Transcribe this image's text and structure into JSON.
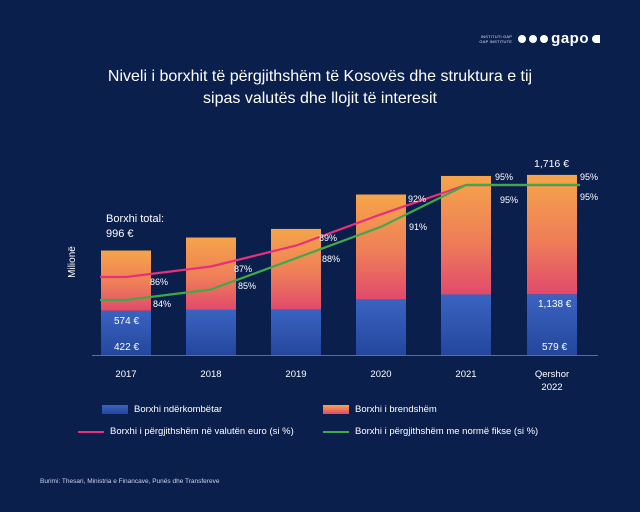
{
  "brand": {
    "small_line1": "INSTITUTI GAP",
    "small_line2": "GAP INSTITUTE",
    "word": "gapo"
  },
  "title_line1": "Niveli i borxhit të përgjithshëm të Kosovës dhe struktura e tij",
  "title_line2": "sipas valutës dhe llojit të interesit",
  "source": "Burimi: Thesari, Ministria e Financave, Punës dhe Transfereve",
  "colors": {
    "external": "#2f58b4",
    "domestic_top": "#f3a04a",
    "domestic_bottom": "#e4526a",
    "euro_line": "#e8307a",
    "fixed_line": "#3fa94a",
    "background": "#0b1f4d"
  },
  "chart_data": {
    "type": "bar",
    "stacked": true,
    "categories": [
      "2017",
      "2018",
      "2019",
      "2020",
      "2021",
      [
        "Qershor",
        "2022"
      ]
    ],
    "ylabel": "Milionë",
    "series": [
      {
        "name": "Borxhi ndërkombëtar",
        "values": [
          422,
          430,
          432,
          530,
          577,
          579
        ]
      },
      {
        "name": "Borxhi i brendshëm",
        "values": [
          574,
          690,
          770,
          1000,
          1130,
          1138
        ]
      }
    ],
    "line_series": [
      {
        "name": "Borxhi i përgjithshëm në valutën euro (si %)",
        "values": [
          86,
          87,
          89,
          92,
          95,
          95
        ]
      },
      {
        "name": "Borxhi i përgjithshëm me normë fikse (si %)",
        "values": [
          84,
          85,
          88,
          91,
          95,
          95
        ]
      }
    ],
    "annotations": {
      "total_first_label_line1": "Borxhi total:",
      "total_first_label_line2": "996 €",
      "total_last": "1,716 €",
      "external_first": "422 €",
      "domestic_first": "574 €",
      "domestic_last": "1,138 €",
      "external_last": "579 €"
    },
    "line_labels_euro": [
      "86%",
      "87%",
      "89%",
      "92%",
      "95%",
      "95%"
    ],
    "line_labels_fixed": [
      "84%",
      "85%",
      "88%",
      "91%",
      "95%",
      "95%"
    ]
  }
}
